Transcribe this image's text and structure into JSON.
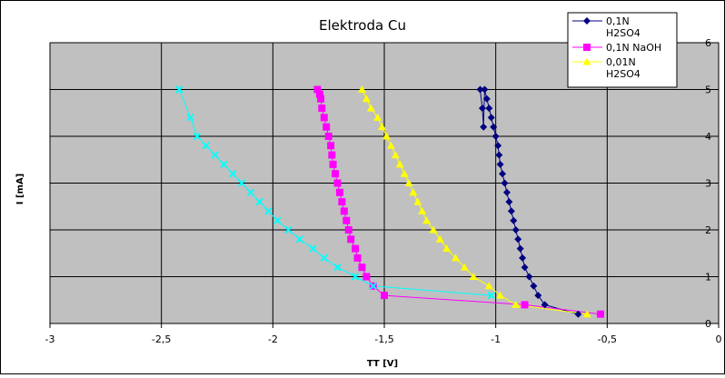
{
  "chart_data": {
    "type": "scatter",
    "title": "Elektroda Cu",
    "xlabel": "TT [V]",
    "ylabel": "I [mA]",
    "xlim": [
      -3,
      0
    ],
    "ylim": [
      0,
      6
    ],
    "x_ticks": [
      "-3",
      "-2,5",
      "-2",
      "-1,5",
      "-1",
      "-0,5",
      "0"
    ],
    "y_ticks": [
      "0",
      "1",
      "2",
      "3",
      "4",
      "5",
      "6"
    ],
    "y_axis_side": "right",
    "grid": true,
    "legend_position": "top-right",
    "plot_background": "#c0c0c0",
    "series": [
      {
        "name": "0,1N H2SO4",
        "legend_lines": [
          "0,1N",
          "H2SO4"
        ],
        "color": "#000080",
        "marker": "diamond",
        "x": [
          -0.63,
          -0.78,
          -0.81,
          -0.83,
          -0.85,
          -0.87,
          -0.88,
          -0.89,
          -0.9,
          -0.91,
          -0.92,
          -0.93,
          -0.94,
          -0.95,
          -0.96,
          -0.97,
          -0.98,
          -0.985,
          -0.99,
          -1.0,
          -1.01,
          -1.02,
          -1.03,
          -1.04,
          -1.05,
          -1.055,
          -1.06,
          -1.07
        ],
        "y": [
          0.2,
          0.4,
          0.6,
          0.8,
          1.0,
          1.2,
          1.4,
          1.6,
          1.8,
          2.0,
          2.2,
          2.4,
          2.6,
          2.8,
          3.0,
          3.2,
          3.4,
          3.6,
          3.8,
          4.0,
          4.2,
          4.4,
          4.6,
          4.8,
          5.0,
          4.2,
          4.6,
          5.0
        ]
      },
      {
        "name": "0,1N NaOH",
        "legend_lines": [
          "0,1N NaOH"
        ],
        "color": "#ff00ff",
        "marker": "square",
        "x": [
          -0.53,
          -0.87,
          -1.5,
          -1.55,
          -1.58,
          -1.6,
          -1.62,
          -1.63,
          -1.65,
          -1.66,
          -1.67,
          -1.68,
          -1.69,
          -1.7,
          -1.71,
          -1.72,
          -1.73,
          -1.735,
          -1.74,
          -1.75,
          -1.76,
          -1.77,
          -1.78,
          -1.785,
          -1.79,
          -1.8
        ],
        "y": [
          0.2,
          0.4,
          0.6,
          0.8,
          1.0,
          1.2,
          1.4,
          1.6,
          1.8,
          2.0,
          2.2,
          2.4,
          2.6,
          2.8,
          3.0,
          3.2,
          3.4,
          3.6,
          3.8,
          4.0,
          4.2,
          4.4,
          4.6,
          4.8,
          4.9,
          5.0
        ]
      },
      {
        "name": "0,01N H2SO4",
        "legend_lines": [
          "0,01N",
          "H2SO4"
        ],
        "color": "#ffff00",
        "marker": "triangle",
        "x": [
          -0.59,
          -0.91,
          -0.98,
          -1.03,
          -1.1,
          -1.14,
          -1.18,
          -1.22,
          -1.25,
          -1.28,
          -1.31,
          -1.33,
          -1.35,
          -1.37,
          -1.39,
          -1.41,
          -1.43,
          -1.45,
          -1.47,
          -1.49,
          -1.51,
          -1.53,
          -1.56,
          -1.58,
          -1.6
        ],
        "y": [
          0.2,
          0.4,
          0.6,
          0.8,
          1.0,
          1.2,
          1.4,
          1.6,
          1.8,
          2.0,
          2.2,
          2.4,
          2.6,
          2.8,
          3.0,
          3.2,
          3.4,
          3.6,
          3.8,
          4.0,
          4.2,
          4.4,
          4.6,
          4.8,
          5.0
        ]
      },
      {
        "name": "",
        "color": "#00ffff",
        "marker": "x",
        "x": [
          -1.02,
          -1.55,
          -1.63,
          -1.71,
          -1.77,
          -1.82,
          -1.88,
          -1.93,
          -1.98,
          -2.02,
          -2.06,
          -2.1,
          -2.14,
          -2.18,
          -2.22,
          -2.26,
          -2.3,
          -2.34,
          -2.37,
          -2.42
        ],
        "y": [
          0.6,
          0.8,
          1.0,
          1.2,
          1.4,
          1.6,
          1.8,
          2.0,
          2.2,
          2.4,
          2.6,
          2.8,
          3.0,
          3.2,
          3.4,
          3.6,
          3.8,
          4.0,
          4.4,
          5.0
        ]
      }
    ]
  }
}
